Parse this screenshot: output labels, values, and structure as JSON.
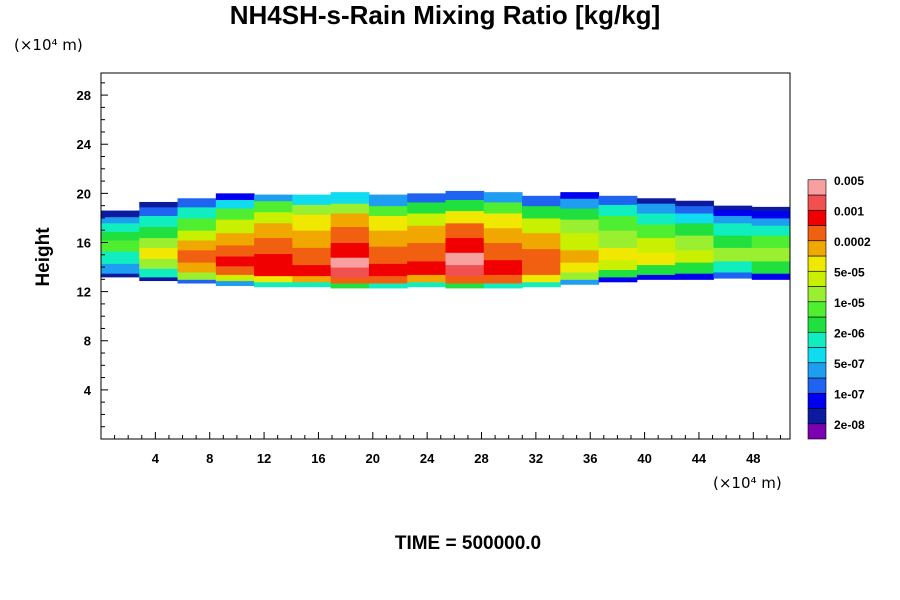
{
  "chart_data": {
    "type": "heatmap",
    "title": "NH4SH-s-Rain Mixing Ratio [kg/kg]",
    "xlabel": "",
    "ylabel": "Height",
    "x_unit_label": "(×10⁴ m)",
    "y_unit_label": "(×10⁴ m)",
    "x_ticks": [
      4,
      8,
      12,
      16,
      20,
      24,
      28,
      32,
      36,
      40,
      44,
      48
    ],
    "y_ticks": [
      4,
      8,
      12,
      16,
      20,
      24,
      28
    ],
    "xlim": [
      0,
      50.7
    ],
    "ylim": [
      0,
      29.8
    ],
    "time_label": "TIME = 500000.0",
    "colorbar": {
      "levels": [
        "2e-08",
        "1e-07",
        "5e-07",
        "2e-06",
        "1e-05",
        "5e-05",
        "0.0002",
        "0.001",
        "0.005"
      ],
      "colors": [
        "#7a00b0",
        "#0c1aa0",
        "#0000f0",
        "#1e64f0",
        "#1e9ef0",
        "#10dcf0",
        "#10eec0",
        "#20e040",
        "#50ee30",
        "#9af030",
        "#c8f000",
        "#f0e800",
        "#f0a800",
        "#f06010",
        "#f00000",
        "#f05050",
        "#f8a0a0"
      ]
    },
    "layer": {
      "y_bottom_range": [
        12.5,
        13.5
      ],
      "y_top_range": [
        18.5,
        20.5
      ],
      "peak_value_kg_per_kg": 0.005
    },
    "cells": [
      [
        13.2,
        13.5,
        1
      ],
      [
        13.5,
        14.3,
        4
      ],
      [
        14.3,
        15.3,
        6
      ],
      [
        15.3,
        16.2,
        8
      ],
      [
        16.2,
        16.9,
        7
      ],
      [
        16.9,
        17.6,
        6
      ],
      [
        17.6,
        18.1,
        4
      ],
      [
        18.1,
        18.6,
        1
      ],
      [
        12.9,
        13.2,
        1
      ],
      [
        13.2,
        13.9,
        6
      ],
      [
        13.9,
        14.7,
        9
      ],
      [
        14.7,
        15.6,
        11
      ],
      [
        15.6,
        16.4,
        9
      ],
      [
        16.4,
        17.3,
        7
      ],
      [
        17.3,
        18.2,
        6
      ],
      [
        18.2,
        18.9,
        3
      ],
      [
        18.9,
        19.3,
        1
      ],
      [
        12.7,
        13.0,
        3
      ],
      [
        13.0,
        13.6,
        9
      ],
      [
        13.6,
        14.4,
        12
      ],
      [
        14.4,
        15.4,
        13
      ],
      [
        15.4,
        16.2,
        12
      ],
      [
        16.2,
        17.0,
        10
      ],
      [
        17.0,
        18.0,
        8
      ],
      [
        18.0,
        18.9,
        6
      ],
      [
        18.9,
        19.6,
        3
      ],
      [
        12.5,
        12.9,
        4
      ],
      [
        12.9,
        13.4,
        10
      ],
      [
        13.4,
        14.1,
        13
      ],
      [
        14.1,
        14.9,
        14
      ],
      [
        14.9,
        15.8,
        13
      ],
      [
        15.8,
        16.8,
        12
      ],
      [
        16.8,
        17.9,
        10
      ],
      [
        17.9,
        18.8,
        8
      ],
      [
        18.8,
        19.5,
        5
      ],
      [
        19.5,
        20.0,
        2
      ],
      [
        12.4,
        12.8,
        6
      ],
      [
        12.8,
        13.3,
        11
      ],
      [
        13.3,
        14.0,
        14
      ],
      [
        14.0,
        15.1,
        14
      ],
      [
        15.1,
        16.4,
        13
      ],
      [
        16.4,
        17.6,
        12
      ],
      [
        17.6,
        18.5,
        10
      ],
      [
        18.5,
        19.4,
        8
      ],
      [
        19.4,
        19.9,
        4
      ],
      [
        12.4,
        12.8,
        6
      ],
      [
        12.8,
        13.3,
        12
      ],
      [
        13.3,
        14.2,
        14
      ],
      [
        14.2,
        15.6,
        13
      ],
      [
        15.6,
        17.0,
        12
      ],
      [
        17.0,
        18.3,
        11
      ],
      [
        18.3,
        19.1,
        9
      ],
      [
        19.1,
        19.9,
        5
      ],
      [
        12.3,
        12.7,
        7
      ],
      [
        12.7,
        13.2,
        13
      ],
      [
        13.2,
        14.0,
        15
      ],
      [
        14.0,
        14.8,
        16
      ],
      [
        14.8,
        16.0,
        14
      ],
      [
        16.0,
        17.3,
        13
      ],
      [
        17.3,
        18.4,
        12
      ],
      [
        18.4,
        19.2,
        9
      ],
      [
        19.2,
        20.1,
        5
      ],
      [
        12.3,
        12.7,
        6
      ],
      [
        12.7,
        13.3,
        13
      ],
      [
        13.3,
        14.3,
        14
      ],
      [
        14.3,
        15.7,
        13
      ],
      [
        15.7,
        17.0,
        12
      ],
      [
        17.0,
        18.2,
        11
      ],
      [
        18.2,
        19.0,
        8
      ],
      [
        19.0,
        19.9,
        4
      ],
      [
        12.4,
        12.8,
        6
      ],
      [
        12.8,
        13.4,
        12
      ],
      [
        13.4,
        14.5,
        14
      ],
      [
        14.5,
        16.0,
        13
      ],
      [
        16.0,
        17.4,
        12
      ],
      [
        17.4,
        18.4,
        10
      ],
      [
        18.4,
        19.3,
        7
      ],
      [
        19.3,
        20.0,
        3
      ],
      [
        12.3,
        12.7,
        7
      ],
      [
        12.7,
        13.3,
        13
      ],
      [
        13.3,
        14.2,
        15
      ],
      [
        14.2,
        15.2,
        16
      ],
      [
        15.2,
        16.4,
        14
      ],
      [
        16.4,
        17.6,
        13
      ],
      [
        17.6,
        18.6,
        11
      ],
      [
        18.6,
        19.5,
        7
      ],
      [
        19.5,
        20.2,
        3
      ],
      [
        12.3,
        12.7,
        6
      ],
      [
        12.7,
        13.4,
        13
      ],
      [
        13.4,
        14.6,
        14
      ],
      [
        14.6,
        16.0,
        13
      ],
      [
        16.0,
        17.2,
        12
      ],
      [
        17.2,
        18.4,
        11
      ],
      [
        18.4,
        19.3,
        8
      ],
      [
        19.3,
        20.1,
        4
      ],
      [
        12.4,
        12.8,
        6
      ],
      [
        12.8,
        13.4,
        11
      ],
      [
        13.4,
        14.3,
        13
      ],
      [
        14.3,
        15.5,
        13
      ],
      [
        15.5,
        16.8,
        12
      ],
      [
        16.8,
        18.0,
        10
      ],
      [
        18.0,
        19.0,
        7
      ],
      [
        19.0,
        19.8,
        3
      ],
      [
        12.6,
        13.0,
        4
      ],
      [
        13.0,
        13.6,
        9
      ],
      [
        13.6,
        14.4,
        11
      ],
      [
        14.4,
        15.4,
        12
      ],
      [
        15.4,
        16.8,
        10
      ],
      [
        16.8,
        17.9,
        9
      ],
      [
        17.9,
        18.8,
        7
      ],
      [
        18.8,
        19.6,
        4
      ],
      [
        19.6,
        20.1,
        2
      ],
      [
        12.8,
        13.2,
        2
      ],
      [
        13.2,
        13.8,
        7
      ],
      [
        13.8,
        14.6,
        10
      ],
      [
        14.6,
        15.6,
        11
      ],
      [
        15.6,
        17.0,
        9
      ],
      [
        17.0,
        18.2,
        8
      ],
      [
        18.2,
        19.1,
        6
      ],
      [
        19.1,
        19.8,
        3
      ],
      [
        13.0,
        13.4,
        2
      ],
      [
        13.4,
        14.2,
        7
      ],
      [
        14.2,
        15.2,
        11
      ],
      [
        15.2,
        16.4,
        10
      ],
      [
        16.4,
        17.5,
        8
      ],
      [
        17.5,
        18.4,
        6
      ],
      [
        18.4,
        19.2,
        4
      ],
      [
        19.2,
        19.6,
        1
      ],
      [
        13.0,
        13.5,
        2
      ],
      [
        13.5,
        14.4,
        7
      ],
      [
        14.4,
        15.4,
        10
      ],
      [
        15.4,
        16.6,
        9
      ],
      [
        16.6,
        17.6,
        7
      ],
      [
        17.6,
        18.4,
        5
      ],
      [
        18.4,
        19.0,
        3
      ],
      [
        19.0,
        19.4,
        1
      ],
      [
        13.1,
        13.6,
        3
      ],
      [
        13.6,
        14.5,
        6
      ],
      [
        14.5,
        15.6,
        9
      ],
      [
        15.6,
        16.6,
        7
      ],
      [
        16.6,
        17.6,
        6
      ],
      [
        17.6,
        18.2,
        4
      ],
      [
        18.2,
        18.7,
        2
      ],
      [
        18.7,
        19.0,
        1
      ],
      [
        13.0,
        13.5,
        2
      ],
      [
        13.5,
        14.5,
        7
      ],
      [
        14.5,
        15.6,
        9
      ],
      [
        15.6,
        16.6,
        8
      ],
      [
        16.6,
        17.4,
        6
      ],
      [
        17.4,
        18.0,
        4
      ],
      [
        18.0,
        18.6,
        2
      ],
      [
        18.6,
        18.9,
        1
      ]
    ]
  }
}
